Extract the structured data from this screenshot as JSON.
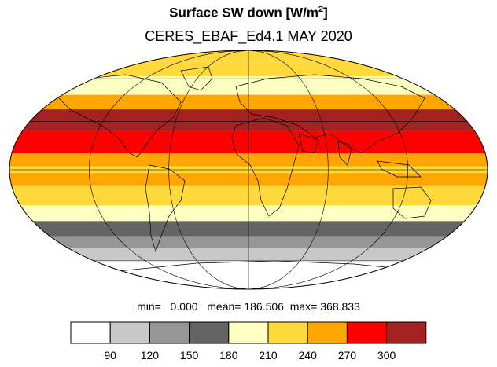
{
  "title": {
    "text": "Surface SW down [W/m",
    "sup": "2",
    "close": "]"
  },
  "subtitle": "CERES_EBAF_Ed4.1 MAY 2020",
  "stats": {
    "min_label": "min=",
    "min": "0.000",
    "mean_label": "mean=",
    "mean": "186.506",
    "max_label": "max=",
    "max": "368.833"
  },
  "colorbar": {
    "colors": [
      "#ffffff",
      "#c8c8c8",
      "#969696",
      "#646464",
      "#ffffc0",
      "#ffd83a",
      "#ffa600",
      "#ff0000",
      "#a52222"
    ],
    "ticks": [
      "90",
      "120",
      "150",
      "180",
      "210",
      "240",
      "270",
      "300"
    ]
  },
  "chart_data": {
    "type": "heatmap",
    "projection": "mollweide",
    "units": "W/m2",
    "levels": [
      90,
      120,
      150,
      180,
      210,
      240,
      270,
      300
    ],
    "zonal_bands": [
      {
        "lat": [
          75,
          90
        ],
        "value": 230
      },
      {
        "lat": [
          62,
          75
        ],
        "value": 215
      },
      {
        "lat": [
          48,
          62
        ],
        "value": 200
      },
      {
        "lat": [
          38,
          48
        ],
        "value": 260
      },
      {
        "lat": [
          24,
          38
        ],
        "value": 305
      },
      {
        "lat": [
          10,
          24
        ],
        "value": 285
      },
      {
        "lat": [
          2,
          10
        ],
        "value": 240
      },
      {
        "lat": [
          -2,
          2
        ],
        "value": 225
      },
      {
        "lat": [
          -10,
          -2
        ],
        "value": 250
      },
      {
        "lat": [
          -22,
          -10
        ],
        "value": 230
      },
      {
        "lat": [
          -32,
          -22
        ],
        "value": 205
      },
      {
        "lat": [
          -42,
          -32
        ],
        "value": 165
      },
      {
        "lat": [
          -50,
          -42
        ],
        "value": 130
      },
      {
        "lat": [
          -60,
          -50
        ],
        "value": 100
      },
      {
        "lat": [
          -90,
          -60
        ],
        "value": 40
      }
    ]
  }
}
